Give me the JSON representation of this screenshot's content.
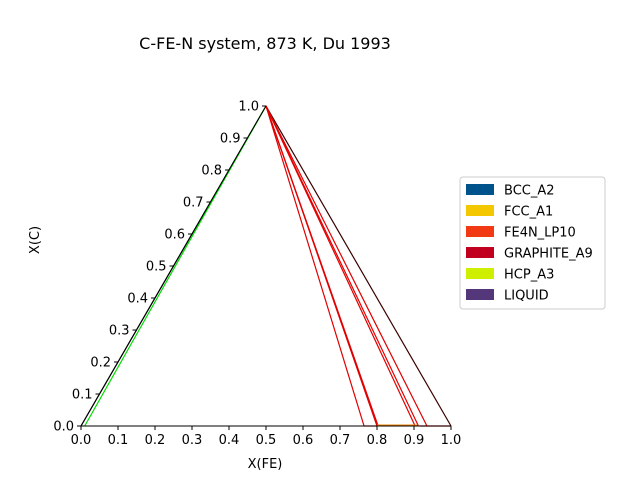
{
  "chart_data": {
    "type": "line",
    "plot_kind": "ternary-phase-diagram",
    "title": "C-FE-N system, 873 K, Du 1993",
    "xlabel": "X(FE)",
    "ylabel": "X(C)",
    "xlim": [
      0.0,
      1.0
    ],
    "ylim": [
      0.0,
      1.0
    ],
    "x_ticks": [
      "0.0",
      "0.1",
      "0.2",
      "0.3",
      "0.4",
      "0.5",
      "0.6",
      "0.7",
      "0.8",
      "0.9",
      "1.0"
    ],
    "y_ticks": [
      "0.0",
      "0.1",
      "0.2",
      "0.3",
      "0.4",
      "0.5",
      "0.6",
      "0.7",
      "0.8",
      "0.9",
      "1.0"
    ],
    "grid": false,
    "legend_position": "right",
    "legend": [
      {
        "label": "BCC_A2",
        "color": "#00538a"
      },
      {
        "label": "FCC_A1",
        "color": "#f4c800"
      },
      {
        "label": "FE4N_LP10",
        "color": "#f13a13"
      },
      {
        "label": "GRAPHITE_A9",
        "color": "#c10020"
      },
      {
        "label": "HCP_A3",
        "color": "#cef000"
      },
      {
        "label": "LIQUID",
        "color": "#53377a"
      }
    ],
    "series": [
      {
        "color": "#000000",
        "points": [
          [
            0.0,
            0.0
          ],
          [
            0.5,
            1.0
          ]
        ]
      },
      {
        "color": "#3a0000",
        "points": [
          [
            0.5,
            1.0
          ],
          [
            1.0,
            0.0
          ]
        ]
      },
      {
        "color": "#00dd00",
        "points": [
          [
            0.01,
            0.0
          ],
          [
            0.5,
            1.0
          ]
        ]
      },
      {
        "color": "#e00000",
        "points": [
          [
            0.5,
            1.0
          ],
          [
            0.765,
            0.0
          ]
        ]
      },
      {
        "color": "#e00000",
        "points": [
          [
            0.5,
            1.0
          ],
          [
            0.8,
            0.0
          ]
        ]
      },
      {
        "color": "#e00000",
        "points": [
          [
            0.5,
            1.0
          ],
          [
            0.803,
            0.0
          ]
        ]
      },
      {
        "color": "#e00000",
        "points": [
          [
            0.5,
            1.0
          ],
          [
            0.903,
            0.0
          ]
        ]
      },
      {
        "color": "#e00000",
        "points": [
          [
            0.5,
            1.0
          ],
          [
            0.912,
            0.0
          ]
        ]
      },
      {
        "color": "#e00000",
        "points": [
          [
            0.5,
            1.0
          ],
          [
            0.935,
            0.0
          ]
        ]
      },
      {
        "color": "#e00000",
        "points": [
          [
            0.915,
            0.0
          ],
          [
            1.0,
            0.0
          ]
        ]
      },
      {
        "color": "#f08000",
        "points": [
          [
            0.8,
            0.003
          ],
          [
            0.91,
            0.003
          ]
        ]
      },
      {
        "color": "#e00000",
        "points": [
          [
            0.765,
            0.0
          ],
          [
            0.8,
            0.0
          ]
        ]
      }
    ]
  }
}
